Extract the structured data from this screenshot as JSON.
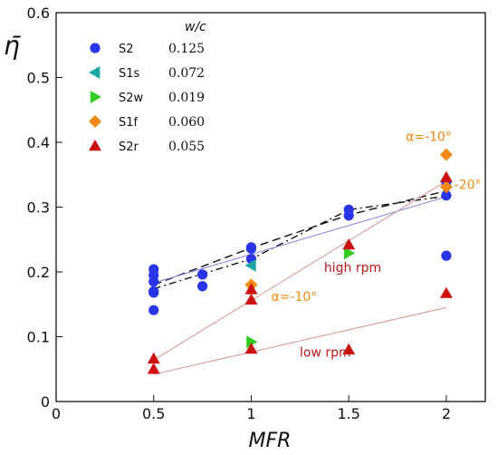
{
  "chart_data": {
    "type": "scatter",
    "xlabel": "MFR",
    "ylabel": "η̄",
    "xlim": [
      0,
      2.2
    ],
    "ylim": [
      0,
      0.6
    ],
    "x_ticks": [
      "0",
      "0.5",
      "1",
      "1.5",
      "2"
    ],
    "y_ticks": [
      "0",
      "0.1",
      "0.2",
      "0.3",
      "0.4",
      "0.5",
      "0.6"
    ],
    "grid": false,
    "legend": {
      "position": "top-left",
      "header": "w/c",
      "entries": [
        {
          "label": "S2",
          "value": "0.125",
          "marker": "circle",
          "color": "#2a35e8"
        },
        {
          "label": "S1s",
          "value": "0.072",
          "marker": "triangle-left",
          "color": "#1ea6a6"
        },
        {
          "label": "S2w",
          "value": "0.019",
          "marker": "triangle-right",
          "color": "#33cc22"
        },
        {
          "label": "S1f",
          "value": "0.060",
          "marker": "diamond",
          "color": "#f08a14"
        },
        {
          "label": "S2r",
          "value": "0.055",
          "marker": "triangle-up",
          "color": "#cc1111"
        }
      ]
    },
    "series": [
      {
        "name": "S2",
        "x": [
          0.5,
          0.5,
          0.5,
          0.5,
          0.5,
          0.5,
          0.75,
          0.75,
          1,
          1,
          1,
          1.5,
          1.5,
          2,
          2,
          2
        ],
        "y": [
          0.204,
          0.195,
          0.185,
          0.17,
          0.168,
          0.141,
          0.196,
          0.178,
          0.238,
          0.236,
          0.22,
          0.296,
          0.287,
          0.339,
          0.318,
          0.225
        ]
      },
      {
        "name": "S1s",
        "x": [
          1
        ],
        "y": [
          0.21
        ]
      },
      {
        "name": "S2w",
        "x": [
          1,
          1.5
        ],
        "y": [
          0.092,
          0.229
        ]
      },
      {
        "name": "S1f",
        "x": [
          1,
          2,
          2
        ],
        "y": [
          0.18,
          0.381,
          0.331
        ]
      },
      {
        "name": "S2r",
        "x": [
          0.5,
          0.5,
          1,
          1,
          1,
          1.5,
          1.5,
          2,
          2
        ],
        "y": [
          0.066,
          0.05,
          0.173,
          0.157,
          0.081,
          0.242,
          0.08,
          0.346,
          0.167
        ]
      }
    ],
    "lines": [
      {
        "style": "dashed",
        "color": "#111111",
        "x": [
          0.5,
          1,
          1.5,
          2
        ],
        "y": [
          0.18,
          0.237,
          0.288,
          0.325
        ]
      },
      {
        "style": "dashdot",
        "color": "#111111",
        "x": [
          0.5,
          1,
          1.5,
          2
        ],
        "y": [
          0.174,
          0.22,
          0.296,
          0.317
        ]
      },
      {
        "style": "solid",
        "color": "#8a8ae0",
        "x": [
          0.5,
          2
        ],
        "y": [
          0.183,
          0.316
        ]
      },
      {
        "style": "solid",
        "color": "#d99a9a",
        "x": [
          0.5,
          2
        ],
        "y": [
          0.064,
          0.34
        ]
      },
      {
        "style": "solid",
        "color": "#d99a9a",
        "x": [
          0.5,
          2
        ],
        "y": [
          0.042,
          0.145
        ]
      }
    ],
    "annotations": [
      {
        "text": "α=-10°",
        "x": 1.91,
        "y": 0.402,
        "color": "#f08a14"
      },
      {
        "text": "-20°",
        "x": 2.11,
        "y": 0.328,
        "color": "#f08a14"
      },
      {
        "text": "high rpm",
        "x": 1.52,
        "y": 0.2,
        "color": "#b81818"
      },
      {
        "text": "α=-10°",
        "x": 1.22,
        "y": 0.155,
        "color": "#f08a14"
      },
      {
        "text": "low rpm",
        "x": 1.38,
        "y": 0.069,
        "color": "#b81818"
      }
    ]
  }
}
